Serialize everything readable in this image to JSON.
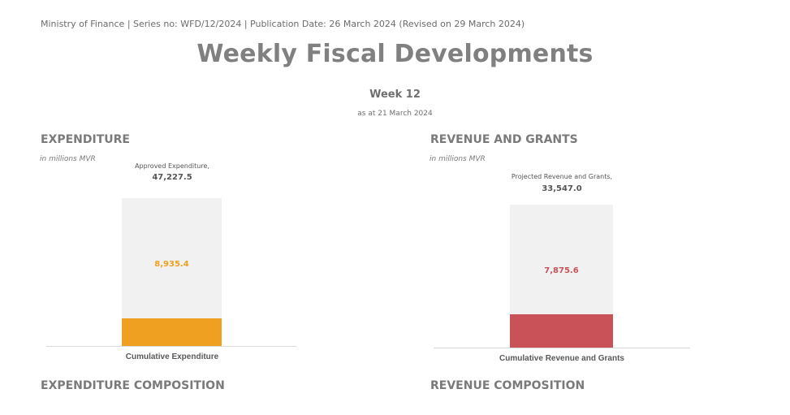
{
  "header": {
    "meta_line": "Ministry of Finance | Series no: WFD/12/2024 | Publication Date: 26 March 2024 (Revised on 29 March 2024)",
    "title": "Weekly Fiscal Developments",
    "week": "Week 12",
    "as_at": "as at 21 March 2024"
  },
  "expenditure": {
    "section_title": "EXPENDITURE",
    "unit": "in millions MVR",
    "cap_label": "Approved Expenditure,",
    "cap_value": "47,227.5",
    "bar_value": "8,935.4",
    "category": "Cumulative Expenditure",
    "color": "#f0a020"
  },
  "revenue": {
    "section_title": "REVENUE AND GRANTS",
    "unit": "in millions MVR",
    "cap_label": "Projected Revenue and Grants,",
    "cap_value": "33,547.0",
    "bar_value": "7,875.6",
    "category": "Cumulative Revenue and Grants",
    "color": "#c85258"
  },
  "composition": {
    "expenditure_title": "EXPENDITURE COMPOSITION",
    "revenue_title": "REVENUE COMPOSITION"
  },
  "chart_data": [
    {
      "type": "bar",
      "categories": [
        "Cumulative Expenditure"
      ],
      "values": [
        8935.4
      ],
      "total": 47227.5,
      "title": "EXPENDITURE",
      "ylabel": "in millions MVR",
      "grid": false
    },
    {
      "type": "bar",
      "categories": [
        "Cumulative Revenue and Grants"
      ],
      "values": [
        7875.6
      ],
      "total": 33547.0,
      "title": "REVENUE AND GRANTS",
      "ylabel": "in millions MVR",
      "grid": false
    }
  ]
}
